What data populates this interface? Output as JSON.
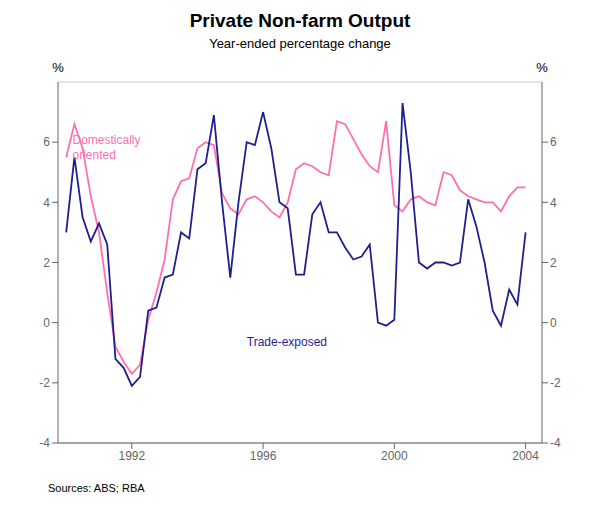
{
  "chart_data": {
    "type": "line",
    "title": "Private Non-farm Output",
    "subtitle": "Year-ended percentage change",
    "source": "Sources: ABS; RBA",
    "y_label": "%",
    "xlim": [
      1989.75,
      2004.5
    ],
    "xticks": [
      1992,
      1996,
      2000,
      2004
    ],
    "ylim": [
      -4,
      8
    ],
    "yticks": [
      -4,
      -2,
      0,
      2,
      4,
      6
    ],
    "y2lim": [
      -4,
      8
    ],
    "y2ticks": [
      -4,
      -2,
      0,
      2,
      4,
      6
    ],
    "grid": true,
    "x": [
      1990.0,
      1990.25,
      1990.5,
      1990.75,
      1991.0,
      1991.25,
      1991.5,
      1991.75,
      1992.0,
      1992.25,
      1992.5,
      1992.75,
      1993.0,
      1993.25,
      1993.5,
      1993.75,
      1994.0,
      1994.25,
      1994.5,
      1994.75,
      1995.0,
      1995.25,
      1995.5,
      1995.75,
      1996.0,
      1996.25,
      1996.5,
      1996.75,
      1997.0,
      1997.25,
      1997.5,
      1997.75,
      1998.0,
      1998.25,
      1998.5,
      1998.75,
      1999.0,
      1999.25,
      1999.5,
      1999.75,
      2000.0,
      2000.25,
      2000.5,
      2000.75,
      2001.0,
      2001.25,
      2001.5,
      2001.75,
      2002.0,
      2002.25,
      2002.5,
      2002.75,
      2003.0,
      2003.25,
      2003.5,
      2003.75,
      2004.0
    ],
    "series": [
      {
        "color": "#ff70b0",
        "values": [
          5.5,
          6.6,
          5.8,
          4.2,
          3.0,
          1.0,
          -0.8,
          -1.3,
          -1.7,
          -1.4,
          0.1,
          1.0,
          2.1,
          4.1,
          4.7,
          4.8,
          5.8,
          6.0,
          5.9,
          4.3,
          3.8,
          3.6,
          4.1,
          4.2,
          4.0,
          3.7,
          3.5,
          4.0,
          5.1,
          5.3,
          5.2,
          5.0,
          4.9,
          6.7,
          6.6,
          6.1,
          5.6,
          5.2,
          5.0,
          6.7,
          3.9,
          3.7,
          4.1,
          4.2,
          4.0,
          3.9,
          5.0,
          4.9,
          4.4,
          4.2,
          4.1,
          4.0,
          4.0,
          3.7,
          4.2,
          4.5,
          4.5
        ]
      },
      {
        "color": "#1f1f8f",
        "values": [
          3.0,
          5.5,
          3.5,
          2.7,
          3.3,
          2.6,
          -1.2,
          -1.5,
          -2.1,
          -1.8,
          0.4,
          0.5,
          1.5,
          1.6,
          3.0,
          2.8,
          5.1,
          5.3,
          6.9,
          4.0,
          1.5,
          4.0,
          6.0,
          5.9,
          7.0,
          5.8,
          4.0,
          3.8,
          1.6,
          1.6,
          3.6,
          4.0,
          3.0,
          3.0,
          2.5,
          2.1,
          2.2,
          2.6,
          0.0,
          -0.1,
          0.1,
          7.3,
          5.0,
          2.0,
          1.8,
          2.0,
          2.0,
          1.9,
          2.0,
          4.1,
          3.2,
          2.0,
          0.4,
          -0.1,
          1.1,
          0.6,
          3.0
        ]
      }
    ],
    "annotations": [
      {
        "text": "Domestically\noriented",
        "color": "#ff70b0"
      },
      {
        "text": "Trade-exposed",
        "color": "#1f1f8f"
      }
    ]
  }
}
